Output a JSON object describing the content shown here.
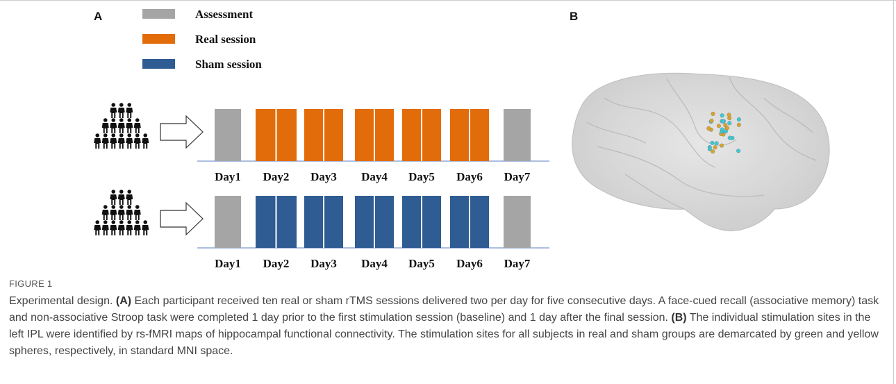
{
  "panel_a": {
    "label": "A",
    "legend": [
      {
        "label": "Assessment",
        "color": "#a5a5a5"
      },
      {
        "label": "Real session",
        "color": "#e36c0a"
      },
      {
        "label": "Sham session",
        "color": "#2f5c93"
      }
    ],
    "day_labels": [
      "Day1",
      "Day2",
      "Day3",
      "Day4",
      "Day5",
      "Day6",
      "Day7"
    ]
  },
  "panel_b": {
    "label": "B"
  },
  "caption": {
    "figure_label": "FIGURE 1",
    "text": [
      "Experimental design. ",
      "(A)",
      " Each participant received ten real or sham rTMS sessions delivered two per day for five consecutive days. A face-cued recall (associative memory) task and non-associative Stroop task were completed 1 day prior to the first stimulation session (baseline) and 1 day after the final session. ",
      "(B)",
      " The individual stimulation sites in the left IPL were identified by rs-fMRI maps of hippocampal functional connectivity. The stimulation sites for all subjects in real and sham groups are demarcated by green and yellow spheres, respectively, in standard MNI space."
    ]
  }
}
